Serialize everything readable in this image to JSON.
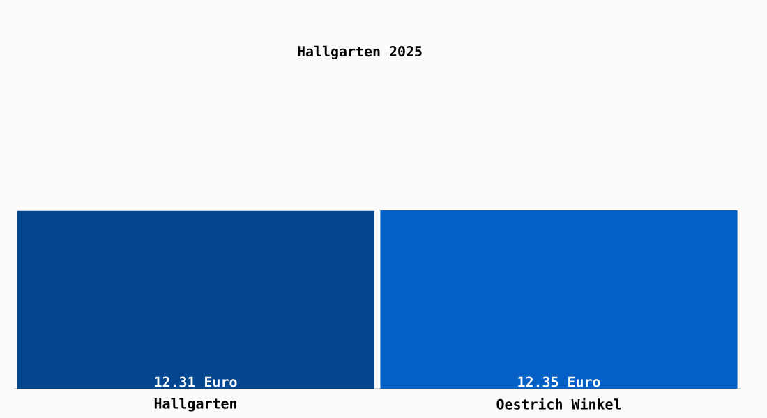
{
  "chart_data": {
    "type": "bar",
    "title": "Hallgarten 2025",
    "categories": [
      "Hallgarten",
      "Oestrich Winkel"
    ],
    "values": [
      12.31,
      12.35
    ],
    "colors": [
      "#03468f",
      "#0460c4"
    ],
    "value_labels": [
      "12.31 Euro",
      "12.35 Euro"
    ]
  }
}
